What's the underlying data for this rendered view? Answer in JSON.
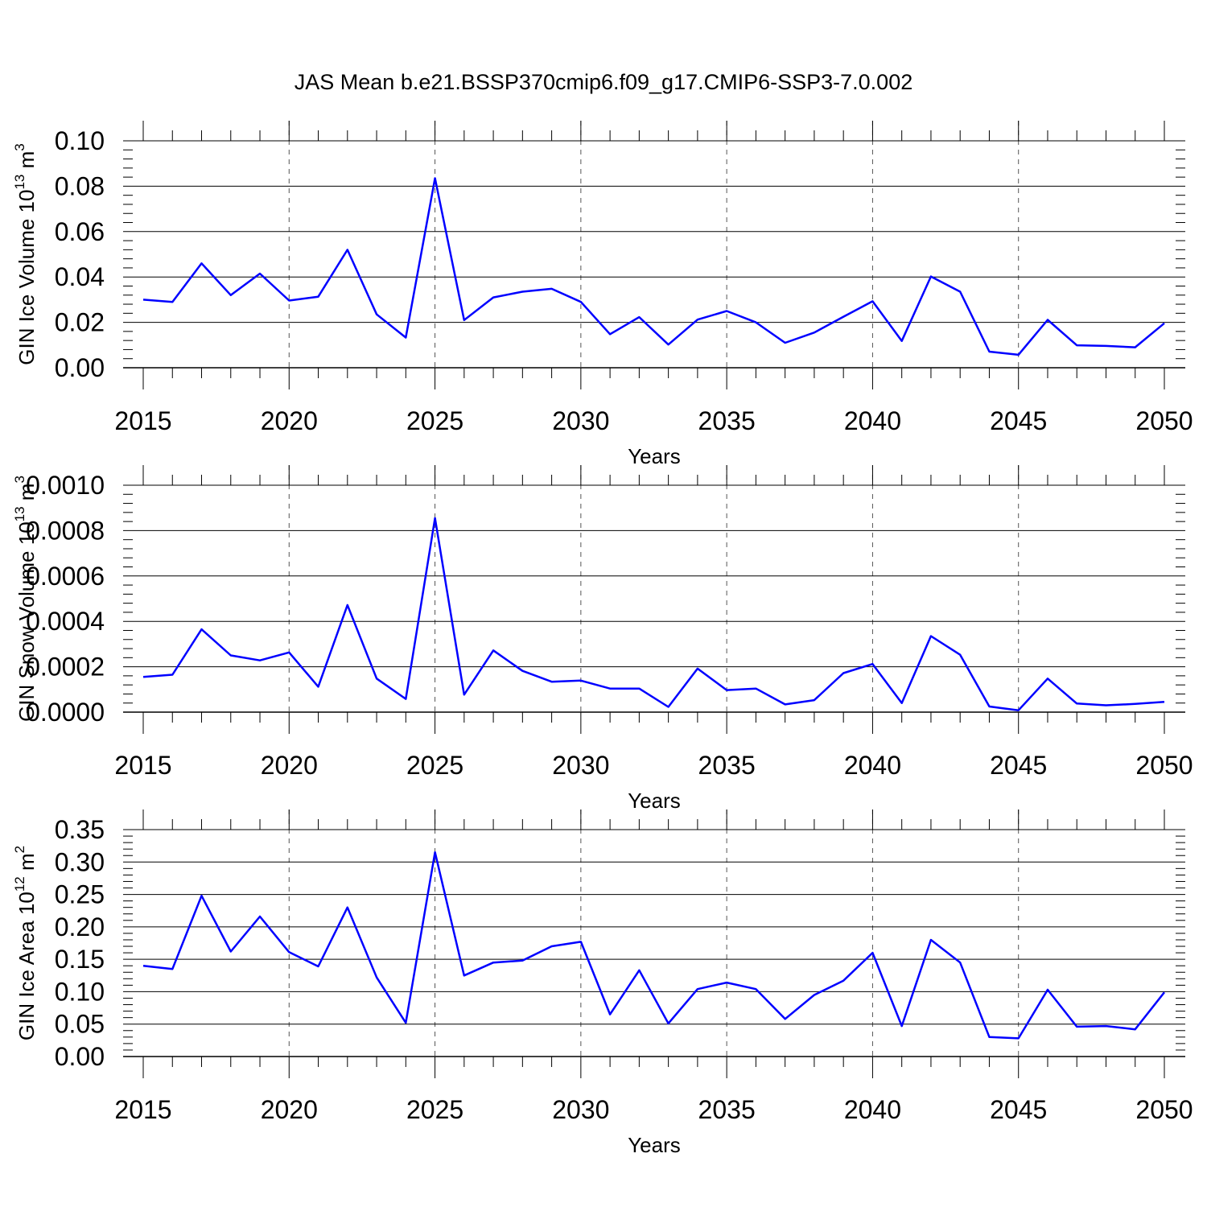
{
  "figure": {
    "title": "JAS Mean b.e21.BSSP370cmip6.f09_g17.CMIP6-SSP3-7.0.002",
    "line_color": "#0000ff"
  },
  "chart_data": [
    {
      "type": "line",
      "xlabel": "Years",
      "ylabel": {
        "base": "GIN Ice Volume 10",
        "exp": "13",
        "unit": " m",
        "unit_exp": "3"
      },
      "xlim": [
        2015,
        2050
      ],
      "ylim": [
        0,
        0.1
      ],
      "xticks": [
        "2015",
        "2020",
        "2025",
        "2030",
        "2035",
        "2040",
        "2045",
        "2050"
      ],
      "yticks": [
        "0.00",
        "0.02",
        "0.04",
        "0.06",
        "0.08",
        "0.10"
      ],
      "grid": "vertical dashed at major x ticks",
      "x": [
        2015,
        2016,
        2017,
        2018,
        2019,
        2020,
        2021,
        2022,
        2023,
        2024,
        2025,
        2026,
        2027,
        2028,
        2029,
        2030,
        2031,
        2032,
        2033,
        2034,
        2035,
        2036,
        2037,
        2038,
        2039,
        2040,
        2041,
        2042,
        2043,
        2044,
        2045,
        2046,
        2047,
        2048,
        2049,
        2050
      ],
      "series": [
        {
          "values": [
            0.03,
            0.029,
            0.046,
            0.032,
            0.0415,
            0.0296,
            0.0313,
            0.052,
            0.0235,
            0.0133,
            0.0835,
            0.021,
            0.031,
            0.0335,
            0.0348,
            0.029,
            0.0148,
            0.0223,
            0.0102,
            0.0212,
            0.025,
            0.02,
            0.011,
            0.0155,
            0.0225,
            0.0293,
            0.0118,
            0.0402,
            0.0335,
            0.0071,
            0.0057,
            0.0211,
            0.0099,
            0.0096,
            0.009,
            0.0196
          ]
        }
      ]
    },
    {
      "type": "line",
      "xlabel": "Years",
      "ylabel": {
        "base": "GIN Snow Volume 10",
        "exp": "13",
        "unit": " m",
        "unit_exp": "3"
      },
      "xlim": [
        2015,
        2050
      ],
      "ylim": [
        0,
        0.001
      ],
      "xticks": [
        "2015",
        "2020",
        "2025",
        "2030",
        "2035",
        "2040",
        "2045",
        "2050"
      ],
      "yticks": [
        "0.0000",
        "0.0002",
        "0.0004",
        "0.0006",
        "0.0008",
        "0.0010"
      ],
      "grid": "vertical dashed at major x ticks",
      "x": [
        2015,
        2016,
        2017,
        2018,
        2019,
        2020,
        2021,
        2022,
        2023,
        2024,
        2025,
        2026,
        2027,
        2028,
        2029,
        2030,
        2031,
        2032,
        2033,
        2034,
        2035,
        2036,
        2037,
        2038,
        2039,
        2040,
        2041,
        2042,
        2043,
        2044,
        2045,
        2046,
        2047,
        2048,
        2049,
        2050
      ],
      "series": [
        {
          "values": [
            0.000155,
            0.000165,
            0.000365,
            0.00025,
            0.000228,
            0.000263,
            0.000112,
            0.000472,
            0.000148,
            5.8e-05,
            0.000855,
            7.7e-05,
            0.000272,
            0.000182,
            0.000134,
            0.000139,
            0.000104,
            0.000104,
            2.3e-05,
            0.000192,
            9.7e-05,
            0.000104,
            3.4e-05,
            5.3e-05,
            0.000172,
            0.000212,
            4e-05,
            0.000335,
            0.000253,
            2.5e-05,
            8e-06,
            0.000148,
            3.8e-05,
            3e-05,
            3.6e-05,
            4.5e-05
          ]
        }
      ]
    },
    {
      "type": "line",
      "xlabel": "Years",
      "ylabel": {
        "base": "GIN Ice Area 10",
        "exp": "12",
        "unit": " m",
        "unit_exp": "2"
      },
      "xlim": [
        2015,
        2050
      ],
      "ylim": [
        0,
        0.35
      ],
      "xticks": [
        "2015",
        "2020",
        "2025",
        "2030",
        "2035",
        "2040",
        "2045",
        "2050"
      ],
      "yticks": [
        "0.00",
        "0.05",
        "0.10",
        "0.15",
        "0.20",
        "0.25",
        "0.30",
        "0.35"
      ],
      "grid": "vertical dashed at major x ticks",
      "x": [
        2015,
        2016,
        2017,
        2018,
        2019,
        2020,
        2021,
        2022,
        2023,
        2024,
        2025,
        2026,
        2027,
        2028,
        2029,
        2030,
        2031,
        2032,
        2033,
        2034,
        2035,
        2036,
        2037,
        2038,
        2039,
        2040,
        2041,
        2042,
        2043,
        2044,
        2045,
        2046,
        2047,
        2048,
        2049,
        2050
      ],
      "series": [
        {
          "values": [
            0.14,
            0.135,
            0.248,
            0.162,
            0.216,
            0.161,
            0.139,
            0.23,
            0.122,
            0.052,
            0.315,
            0.125,
            0.145,
            0.148,
            0.17,
            0.177,
            0.065,
            0.133,
            0.051,
            0.104,
            0.114,
            0.104,
            0.058,
            0.095,
            0.117,
            0.16,
            0.047,
            0.18,
            0.145,
            0.03,
            0.028,
            0.103,
            0.046,
            0.047,
            0.042,
            0.099
          ]
        }
      ]
    }
  ]
}
